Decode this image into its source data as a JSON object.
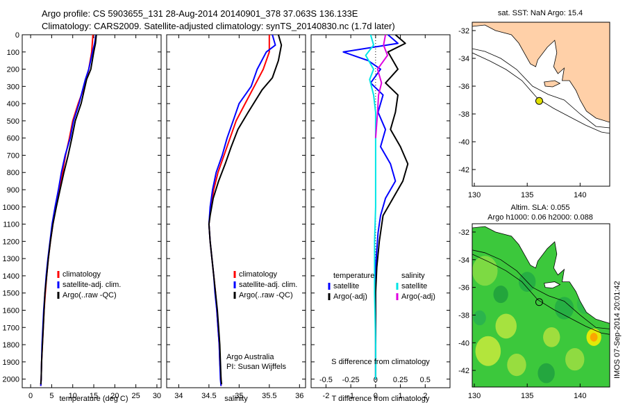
{
  "header": {
    "line1": "Argo profile: CS 5903655_131 28-Aug-2014 20140901_378 37.063S 136.133E",
    "line2": "Climatology: CARS2009. Satellite-adjusted climatology: synTS_20140830.nc (1.7d later)"
  },
  "colors": {
    "climatology": "#ff0000",
    "satellite": "#0000ff",
    "argo": "#000000",
    "sal_satellite": "#00e5e5",
    "sal_argo": "#e000e0",
    "land": "#ffd0a8",
    "float_marker": "#e0e000"
  },
  "chart_data": [
    {
      "type": "line",
      "xlabel": "temperature (deg C)",
      "ylabel": "",
      "xlim": [
        -2,
        31
      ],
      "ylim": [
        2050,
        0
      ],
      "xticks": [
        0,
        5,
        10,
        15,
        20,
        25,
        30
      ],
      "yticks": [
        0,
        100,
        200,
        300,
        400,
        500,
        600,
        700,
        800,
        900,
        1000,
        1100,
        1200,
        1300,
        1400,
        1500,
        1600,
        1700,
        1800,
        1900,
        2000
      ],
      "legend": {
        "placement": "bottom-center",
        "entries": [
          "climatology",
          "satellite-adj. clim.",
          "Argo(..raw -QC)"
        ]
      },
      "series": [
        {
          "name": "climatology",
          "color": "#ff0000",
          "points": [
            [
              14.8,
              0
            ],
            [
              14.5,
              100
            ],
            [
              13.8,
              200
            ],
            [
              12.8,
              300
            ],
            [
              11.3,
              400
            ],
            [
              10.0,
              500
            ],
            [
              9.2,
              600
            ],
            [
              8.3,
              700
            ],
            [
              7.6,
              800
            ],
            [
              6.8,
              900
            ],
            [
              6.0,
              1000
            ],
            [
              5.3,
              1100
            ],
            [
              4.7,
              1200
            ],
            [
              4.2,
              1300
            ],
            [
              3.8,
              1400
            ],
            [
              3.5,
              1500
            ],
            [
              3.2,
              1600
            ],
            [
              3.0,
              1700
            ],
            [
              2.8,
              1800
            ],
            [
              2.6,
              1900
            ],
            [
              2.5,
              2000
            ],
            [
              2.4,
              2040
            ]
          ]
        },
        {
          "name": "satellite-adj. clim.",
          "color": "#0000ff",
          "points": [
            [
              15.5,
              0
            ],
            [
              15.2,
              50
            ],
            [
              14.7,
              100
            ],
            [
              13.8,
              200
            ],
            [
              13.0,
              260
            ],
            [
              11.5,
              400
            ],
            [
              10.2,
              500
            ],
            [
              9.4,
              600
            ],
            [
              8.2,
              700
            ],
            [
              7.3,
              800
            ],
            [
              6.6,
              900
            ],
            [
              5.8,
              1000
            ],
            [
              5.1,
              1100
            ],
            [
              4.6,
              1200
            ],
            [
              4.1,
              1300
            ],
            [
              3.7,
              1400
            ],
            [
              3.4,
              1500
            ],
            [
              3.1,
              1600
            ],
            [
              2.9,
              1700
            ],
            [
              2.7,
              1800
            ],
            [
              2.6,
              1900
            ],
            [
              2.5,
              2000
            ],
            [
              2.4,
              2040
            ]
          ]
        },
        {
          "name": "Argo(..raw -QC)",
          "color": "#000000",
          "points": [
            [
              15.6,
              0
            ],
            [
              15.4,
              50
            ],
            [
              15.0,
              100
            ],
            [
              14.3,
              200
            ],
            [
              13.3,
              260
            ],
            [
              12.0,
              400
            ],
            [
              10.6,
              500
            ],
            [
              9.8,
              600
            ],
            [
              8.9,
              700
            ],
            [
              7.9,
              800
            ],
            [
              7.0,
              900
            ],
            [
              6.1,
              1000
            ],
            [
              5.3,
              1100
            ],
            [
              4.7,
              1200
            ],
            [
              4.2,
              1300
            ],
            [
              3.8,
              1400
            ],
            [
              3.4,
              1500
            ],
            [
              3.2,
              1600
            ],
            [
              3.0,
              1700
            ],
            [
              2.8,
              1800
            ],
            [
              2.6,
              1900
            ],
            [
              2.5,
              2000
            ],
            [
              2.4,
              2030
            ]
          ]
        }
      ]
    },
    {
      "type": "line",
      "xlabel": "salinity",
      "ylabel": "",
      "xlim": [
        33.8,
        36.1
      ],
      "ylim": [
        2050,
        0
      ],
      "xticks": [
        34,
        34.5,
        35,
        35.5,
        36
      ],
      "legend": {
        "placement": "bottom-right",
        "entries": [
          "climatology",
          "satellite-adj. clim.",
          "Argo(..raw -QC)"
        ]
      },
      "annotation": [
        "Argo Australia",
        "PI: Susan Wijffels"
      ],
      "series": [
        {
          "name": "climatology",
          "color": "#ff0000",
          "points": [
            [
              35.5,
              0
            ],
            [
              35.5,
              100
            ],
            [
              35.4,
              200
            ],
            [
              35.25,
              300
            ],
            [
              35.1,
              400
            ],
            [
              34.95,
              500
            ],
            [
              34.85,
              600
            ],
            [
              34.75,
              700
            ],
            [
              34.65,
              800
            ],
            [
              34.58,
              900
            ],
            [
              34.53,
              1000
            ],
            [
              34.5,
              1100
            ],
            [
              34.52,
              1200
            ],
            [
              34.55,
              1300
            ],
            [
              34.58,
              1400
            ],
            [
              34.61,
              1500
            ],
            [
              34.63,
              1600
            ],
            [
              34.65,
              1700
            ],
            [
              34.67,
              1800
            ],
            [
              34.68,
              1900
            ],
            [
              34.7,
              2000
            ],
            [
              34.7,
              2040
            ]
          ]
        },
        {
          "name": "satellite-adj. clim.",
          "color": "#0000ff",
          "points": [
            [
              35.55,
              0
            ],
            [
              35.6,
              60
            ],
            [
              35.45,
              100
            ],
            [
              35.3,
              200
            ],
            [
              35.2,
              300
            ],
            [
              35.0,
              400
            ],
            [
              34.9,
              500
            ],
            [
              34.8,
              600
            ],
            [
              34.72,
              700
            ],
            [
              34.62,
              800
            ],
            [
              34.56,
              900
            ],
            [
              34.52,
              1000
            ],
            [
              34.5,
              1100
            ],
            [
              34.52,
              1200
            ],
            [
              34.55,
              1300
            ],
            [
              34.58,
              1400
            ],
            [
              34.6,
              1500
            ],
            [
              34.63,
              1600
            ],
            [
              34.65,
              1700
            ],
            [
              34.67,
              1800
            ],
            [
              34.68,
              1900
            ],
            [
              34.69,
              2000
            ],
            [
              34.7,
              2040
            ]
          ]
        },
        {
          "name": "Argo(..raw -QC)",
          "color": "#000000",
          "points": [
            [
              35.65,
              0
            ],
            [
              35.7,
              60
            ],
            [
              35.65,
              150
            ],
            [
              35.55,
              250
            ],
            [
              35.38,
              320
            ],
            [
              35.15,
              450
            ],
            [
              34.98,
              550
            ],
            [
              34.87,
              650
            ],
            [
              34.77,
              750
            ],
            [
              34.66,
              850
            ],
            [
              34.57,
              950
            ],
            [
              34.52,
              1050
            ],
            [
              34.5,
              1100
            ],
            [
              34.52,
              1200
            ],
            [
              34.55,
              1300
            ],
            [
              34.58,
              1400
            ],
            [
              34.61,
              1500
            ],
            [
              34.64,
              1600
            ],
            [
              34.66,
              1700
            ],
            [
              34.68,
              1800
            ],
            [
              34.69,
              1900
            ],
            [
              34.7,
              2000
            ],
            [
              34.71,
              2030
            ]
          ]
        }
      ]
    },
    {
      "type": "line",
      "xlabel": "T difference from climatology",
      "xlabel_top": "S difference from climatology",
      "ylabel": "",
      "xlim": [
        -2.6,
        3.0
      ],
      "xlim_top": [
        -0.65,
        0.75
      ],
      "ylim": [
        2050,
        0
      ],
      "xticks": [
        -2,
        -1,
        0,
        1,
        2
      ],
      "xticks_top": [
        "-0.5",
        "-0.25",
        "0",
        "0.25",
        "0.5"
      ],
      "legend": {
        "placement": "bottom",
        "groups": [
          {
            "title": "temperature",
            "entries": [
              "satellite",
              "Argo(-adj)"
            ]
          },
          {
            "title": "salinity",
            "entries": [
              "satellite",
              "Argo(-adj)"
            ]
          }
        ]
      },
      "series": [
        {
          "name": "temperature satellite",
          "axis": "T",
          "color": "#0000ff",
          "points": [
            [
              0.5,
              0
            ],
            [
              0.9,
              50
            ],
            [
              -1.3,
              100
            ],
            [
              -0.3,
              150
            ],
            [
              0.2,
              200
            ],
            [
              -0.2,
              280
            ],
            [
              0.3,
              350
            ],
            [
              0.1,
              450
            ],
            [
              0.4,
              550
            ],
            [
              0.2,
              650
            ],
            [
              0.6,
              750
            ],
            [
              0.8,
              850
            ],
            [
              0.4,
              950
            ],
            [
              0.2,
              1050
            ],
            [
              0.1,
              1150
            ],
            [
              0.05,
              1250
            ],
            [
              0.0,
              1350
            ],
            [
              0.0,
              1500
            ],
            [
              0.0,
              1700
            ],
            [
              0.0,
              2000
            ]
          ]
        },
        {
          "name": "temperature Argo(-adj)",
          "axis": "T",
          "color": "#000000",
          "points": [
            [
              0.8,
              0
            ],
            [
              1.2,
              50
            ],
            [
              0.5,
              100
            ],
            [
              0.9,
              200
            ],
            [
              0.4,
              280
            ],
            [
              0.9,
              350
            ],
            [
              0.8,
              450
            ],
            [
              0.6,
              550
            ],
            [
              1.0,
              650
            ],
            [
              1.3,
              750
            ],
            [
              1.1,
              850
            ],
            [
              0.7,
              950
            ],
            [
              0.3,
              1050
            ],
            [
              0.15,
              1200
            ],
            [
              0.05,
              1350
            ],
            [
              0.0,
              1500
            ],
            [
              0.0,
              1700
            ],
            [
              0.0,
              2000
            ]
          ]
        },
        {
          "name": "salinity satellite",
          "axis": "S",
          "color": "#00e5e5",
          "points": [
            [
              -0.05,
              0
            ],
            [
              -0.02,
              60
            ],
            [
              -0.1,
              120
            ],
            [
              -0.02,
              200
            ],
            [
              -0.06,
              260
            ],
            [
              -0.02,
              350
            ],
            [
              0.0,
              450
            ],
            [
              0.0,
              600
            ],
            [
              0.0,
              800
            ],
            [
              0.0,
              1000
            ],
            [
              -0.01,
              1200
            ],
            [
              -0.01,
              1500
            ],
            [
              0.0,
              1800
            ],
            [
              0.0,
              2000
            ]
          ]
        },
        {
          "name": "salinity Argo(-adj)",
          "axis": "S",
          "color": "#e000e0",
          "points": [
            [
              0.1,
              0
            ],
            [
              0.08,
              60
            ],
            [
              0.12,
              120
            ],
            [
              0.02,
              200
            ],
            [
              0.06,
              280
            ],
            [
              0.03,
              350
            ],
            [
              0.02,
              450
            ],
            [
              0.0,
              600
            ]
          ]
        }
      ]
    },
    {
      "type": "map",
      "title": "sat. SST: NaN Argo: 15.4",
      "xticks": [
        130,
        135,
        140
      ],
      "yticks": [
        -32,
        -34,
        -36,
        -38,
        -40,
        -42
      ],
      "xlim": [
        129.8,
        142.8
      ],
      "ylim": [
        -43.2,
        -31.4
      ],
      "float": {
        "lon": 136.133,
        "lat": -37.063
      }
    },
    {
      "type": "heatmap",
      "title_line1": "Altim. SLA: 0.055",
      "title_line2": "Argo h1000: 0.06 h2000: 0.088",
      "xticks": [
        130,
        135,
        140
      ],
      "yticks": [
        -32,
        -34,
        -36,
        -38,
        -40,
        -42
      ],
      "xlim": [
        129.8,
        142.8
      ],
      "ylim": [
        -43.2,
        -31.4
      ],
      "float": {
        "lon": 136.133,
        "lat": -37.063
      }
    }
  ],
  "side_label": "IMOS 07-Sep-2014 20:01:42"
}
